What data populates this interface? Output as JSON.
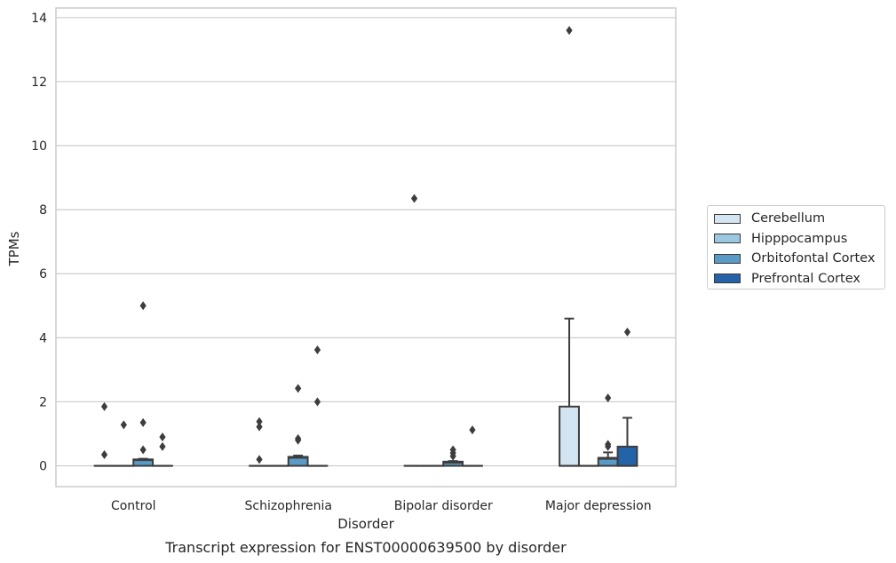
{
  "chart_data": {
    "type": "box",
    "title": "",
    "caption": "Transcript expression for ENST00000639500 by disorder",
    "xlabel": "Disorder",
    "ylabel": "TPMs",
    "ylim": [
      -0.65,
      14.3
    ],
    "yticks": [
      0,
      2,
      4,
      6,
      8,
      10,
      12,
      14
    ],
    "grid": "horizontal",
    "legend_position": "right",
    "categories": [
      "Control",
      "Schizophrenia",
      "Bipolar disorder",
      "Major depression"
    ],
    "series": [
      {
        "name": "Cerebellum",
        "color": "#d3e4f2",
        "boxes": [
          {
            "category": "Control",
            "q1": 0,
            "median": 0,
            "q3": 0,
            "whisker_low": 0,
            "whisker_high": 0,
            "outliers": [
              1.85,
              0.35
            ]
          },
          {
            "category": "Schizophrenia",
            "q1": 0,
            "median": 0,
            "q3": 0,
            "whisker_low": 0,
            "whisker_high": 0,
            "outliers": [
              1.38,
              1.22,
              0.2
            ]
          },
          {
            "category": "Bipolar disorder",
            "q1": 0,
            "median": 0,
            "q3": 0,
            "whisker_low": 0,
            "whisker_high": 0,
            "outliers": [
              8.35
            ]
          },
          {
            "category": "Major depression",
            "q1": 0,
            "median": 0,
            "q3": 1.85,
            "whisker_low": 0,
            "whisker_high": 4.6,
            "outliers": [
              13.6
            ]
          }
        ]
      },
      {
        "name": "Hipppocampus",
        "color": "#9ac8e0",
        "boxes": [
          {
            "category": "Control",
            "q1": 0,
            "median": 0,
            "q3": 0,
            "whisker_low": 0,
            "whisker_high": 0,
            "outliers": [
              1.28
            ]
          },
          {
            "category": "Schizophrenia",
            "q1": 0,
            "median": 0,
            "q3": 0,
            "whisker_low": 0,
            "whisker_high": 0,
            "outliers": []
          },
          {
            "category": "Bipolar disorder",
            "q1": 0,
            "median": 0,
            "q3": 0,
            "whisker_low": 0,
            "whisker_high": 0,
            "outliers": []
          },
          {
            "category": "Major depression",
            "q1": 0,
            "median": 0,
            "q3": 0,
            "whisker_low": 0,
            "whisker_high": 0,
            "outliers": []
          }
        ]
      },
      {
        "name": "Orbitofontal Cortex",
        "color": "#5a9ac6",
        "boxes": [
          {
            "category": "Control",
            "q1": 0,
            "median": 0.18,
            "q3": 0.2,
            "whisker_low": 0,
            "whisker_high": 0.22,
            "outliers": [
              5.0,
              1.35,
              0.5
            ]
          },
          {
            "category": "Schizophrenia",
            "q1": 0,
            "median": 0.25,
            "q3": 0.28,
            "whisker_low": 0,
            "whisker_high": 0.32,
            "outliers": [
              2.42,
              0.85,
              0.8
            ]
          },
          {
            "category": "Bipolar disorder",
            "q1": 0,
            "median": 0.1,
            "q3": 0.13,
            "whisker_low": 0,
            "whisker_high": 0.15,
            "outliers": [
              0.5,
              0.4,
              0.3
            ]
          },
          {
            "category": "Major depression",
            "q1": 0,
            "median": 0.22,
            "q3": 0.25,
            "whisker_low": 0,
            "whisker_high": 0.42,
            "outliers": [
              2.12,
              0.67,
              0.6
            ]
          }
        ]
      },
      {
        "name": "Prefrontal Cortex",
        "color": "#2364a8",
        "boxes": [
          {
            "category": "Control",
            "q1": 0,
            "median": 0,
            "q3": 0,
            "whisker_low": 0,
            "whisker_high": 0,
            "outliers": [
              0.9,
              0.6
            ]
          },
          {
            "category": "Schizophrenia",
            "q1": 0,
            "median": 0,
            "q3": 0,
            "whisker_low": 0,
            "whisker_high": 0,
            "outliers": [
              3.62,
              2.0
            ]
          },
          {
            "category": "Bipolar disorder",
            "q1": 0,
            "median": 0,
            "q3": 0,
            "whisker_low": 0,
            "whisker_high": 0,
            "outliers": [
              1.12
            ]
          },
          {
            "category": "Major depression",
            "q1": 0,
            "median": 0,
            "q3": 0.6,
            "whisker_low": 0,
            "whisker_high": 1.5,
            "outliers": [
              4.18
            ]
          }
        ]
      }
    ]
  }
}
